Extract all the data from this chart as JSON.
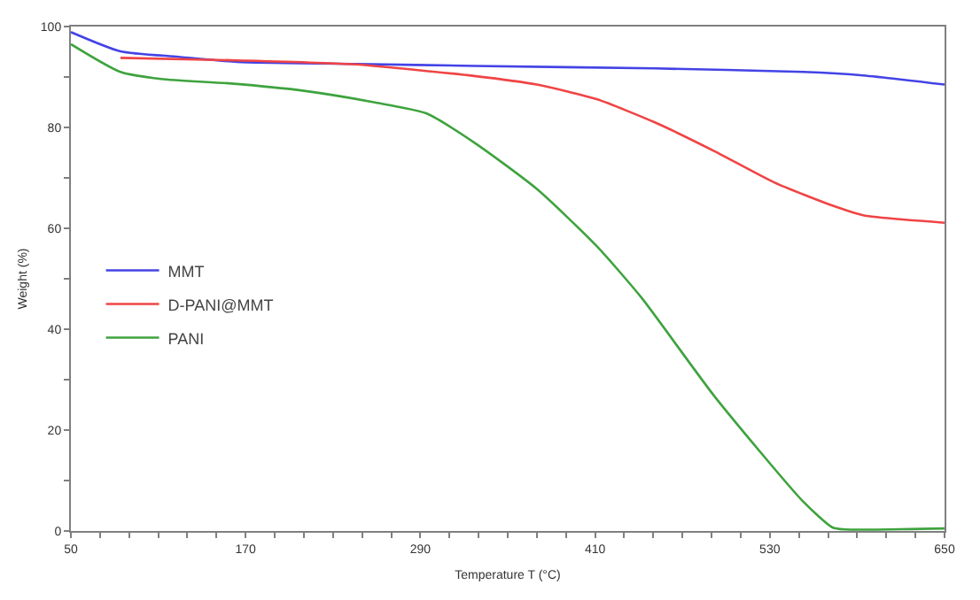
{
  "chart_data": {
    "type": "line",
    "xlabel": "Temperature T (°C)",
    "ylabel": "Weight (%)",
    "xlim": [
      50,
      650
    ],
    "ylim": [
      0,
      100
    ],
    "xticks": [
      50,
      {
        "value": 70,
        "label": null
      },
      {
        "value": 90,
        "label": null
      },
      {
        "value": 110,
        "label": null
      },
      {
        "value": 130,
        "label": null
      },
      {
        "value": 150,
        "label": null
      },
      170,
      {
        "value": 190,
        "label": null
      },
      {
        "value": 210,
        "label": null
      },
      {
        "value": 230,
        "label": null
      },
      {
        "value": 250,
        "label": null
      },
      {
        "value": 270,
        "label": null
      },
      290,
      {
        "value": 310,
        "label": null
      },
      {
        "value": 330,
        "label": null
      },
      {
        "value": 350,
        "label": null
      },
      {
        "value": 370,
        "label": null
      },
      {
        "value": 390,
        "label": null
      },
      410,
      {
        "value": 430,
        "label": null
      },
      {
        "value": 450,
        "label": null
      },
      {
        "value": 470,
        "label": null
      },
      {
        "value": 490,
        "label": null
      },
      {
        "value": 510,
        "label": null
      },
      530,
      {
        "value": 550,
        "label": null
      },
      {
        "value": 570,
        "label": null
      },
      {
        "value": 590,
        "label": null
      },
      {
        "value": 610,
        "label": null
      },
      {
        "value": 630,
        "label": null
      },
      650
    ],
    "yticks": [
      0,
      {
        "value": 10,
        "label": null
      },
      20,
      {
        "value": 30,
        "label": null
      },
      40,
      {
        "value": 50,
        "label": null
      },
      60,
      {
        "value": 70,
        "label": null
      },
      80,
      {
        "value": 90,
        "label": null
      },
      100
    ],
    "legend": "left",
    "marker": "none",
    "line_style": "solid",
    "series": [
      {
        "name": "MMT",
        "color": "#4343e6",
        "x": [
          50,
          84,
          124,
          164,
          245,
          327,
          451,
          553,
          594,
          650
        ],
        "values": [
          98.9,
          95.1,
          94.0,
          93.0,
          92.6,
          92.2,
          91.7,
          91.0,
          90.3,
          88.5
        ]
      },
      {
        "name": "D-PANI@MMT",
        "color": "#f04444",
        "x": [
          84,
          164,
          245,
          327,
          370,
          411,
          451,
          492,
          533,
          573,
          594,
          650
        ],
        "values": [
          93.8,
          93.3,
          92.5,
          90.2,
          88.5,
          85.6,
          81.0,
          75.3,
          69.1,
          64.5,
          62.6,
          61.1
        ]
      },
      {
        "name": "PANI",
        "color": "#3ea33e",
        "x": [
          50,
          84,
          112,
          160,
          209,
          258,
          294,
          327,
          370,
          411,
          442,
          492,
          553,
          573,
          582,
          650
        ],
        "values": [
          96.5,
          91.0,
          89.6,
          88.7,
          87.3,
          85.0,
          82.8,
          77.0,
          67.8,
          56.5,
          46.2,
          26.7,
          5.8,
          0.7,
          0.3,
          0.5
        ]
      }
    ]
  }
}
